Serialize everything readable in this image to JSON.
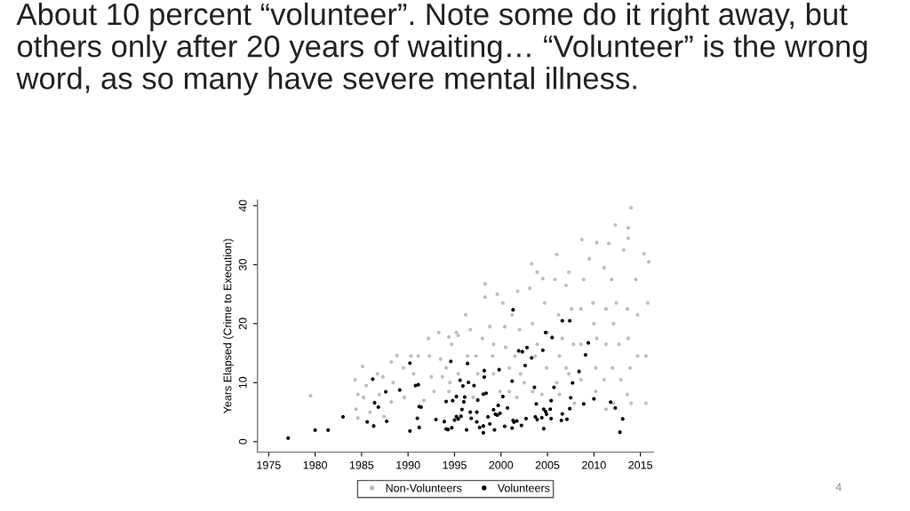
{
  "chart_data": {
    "type": "scatter",
    "title": "About 10 percent “volunteer”. Note some do it right away, but others only after 20 years of waiting… “Volunteer” is the wrong word, as so many have severe mental illness.",
    "ylabel": "Years Elapsed (Crime to Execution)",
    "xlim": [
      1973.8,
      2016.4
    ],
    "ylim": [
      -1.8,
      41
    ],
    "xticks": [
      1975,
      1980,
      1985,
      1990,
      1995,
      2000,
      2005,
      2010,
      2015
    ],
    "yticks": [
      0,
      10,
      20,
      30,
      40
    ],
    "grid": false,
    "legend": "bottom",
    "marker": "circle",
    "annotations": [
      "4"
    ],
    "series": [
      {
        "name": "Non-Volunteers",
        "color": "#bdbdbd",
        "x": [
          1979.5,
          1984.3,
          1984.6,
          1984.4,
          1984.6,
          1985.1,
          1985.2,
          1985.5,
          1985.9,
          1986.7,
          1986.9,
          1987.4,
          1987.3,
          1988.2,
          1988.4,
          1988.2,
          1988.8,
          1989.5,
          1989.6,
          1990.3,
          1990.6,
          1991.1,
          1991.7,
          1992.2,
          1992.3,
          1992.5,
          1992.8,
          1993.3,
          1993.5,
          1993.7,
          1994.4,
          1994.5,
          1995.2,
          1995.4,
          1994.7,
          1994.1,
          1994.4,
          1996.2,
          1996.7,
          1997.3,
          1997.5,
          1997.0,
          1998.3,
          1998.3,
          1998.8,
          1999.1,
          1999.2,
          1999.6,
          2000.2,
          2000.4,
          2000.5,
          2000.9,
          1999.9,
          2001.2,
          2001.8,
          2002.0,
          2002.1,
          2001.7,
          2003.1,
          2003.3,
          2003.9,
          2003.4,
          2003.7,
          2003.4,
          2004.5,
          2004.7,
          2005.0,
          2004.9,
          2006.0,
          2005.8,
          2006.2,
          2006.3,
          2006.0,
          2007.0,
          2007.3,
          2007.6,
          2007.8,
          2007.3,
          2008.7,
          2008.9,
          2008.6,
          2008.6,
          2008.6,
          2009.5,
          2009.9,
          2010.0,
          2010.3,
          2010.3,
          2010.2,
          2010.2,
          2011.1,
          2011.3,
          2011.3,
          2011.1,
          2011.6,
          2011.9,
          2012.1,
          2012.0,
          2011.3,
          2012.3,
          2012.4,
          2012.7,
          2012.9,
          2013.2,
          2013.7,
          2013.7,
          2014.0,
          2013.6,
          2013.7,
          2013.9,
          2013.6,
          2014.5,
          2014.7,
          2014.7,
          2015.4,
          2015.9,
          2015.8,
          2015.6,
          2015.6,
          2014.0,
          2012.1,
          2007.9,
          2006.3,
          2004.4,
          2002.5,
          2000.9,
          2001.5,
          2003.9,
          2007.0,
          2006.6,
          1998.0,
          1999.2,
          1996.4,
          1995.4
        ],
        "values": [
          7.8,
          10.5,
          8.0,
          5.5,
          4.0,
          12.75,
          7.5,
          9.5,
          5.0,
          11.5,
          8.0,
          4.25,
          11.0,
          13.5,
          10.0,
          6.75,
          14.6,
          12.5,
          7.5,
          14.5,
          11.5,
          14.5,
          7.0,
          17.5,
          14.5,
          11.0,
          8.5,
          18.5,
          14.0,
          11.0,
          17.75,
          10.0,
          18.5,
          18.0,
          16.5,
          12.5,
          8.5,
          21.5,
          19.0,
          14.5,
          11.5,
          7.5,
          26.75,
          24.5,
          19.5,
          14.5,
          11.5,
          25.0,
          23.5,
          19.5,
          16.0,
          12.5,
          8.5,
          21.5,
          25.5,
          19.0,
          11.5,
          7.5,
          26.0,
          30.15,
          28.75,
          20.0,
          14.5,
          8.5,
          27.65,
          23.5,
          18.5,
          12.5,
          31.75,
          27.5,
          21.5,
          14.5,
          10.0,
          26.5,
          28.75,
          22.5,
          16.5,
          11.5,
          34.25,
          27.5,
          22.5,
          16.5,
          10.5,
          31.0,
          23.5,
          20.0,
          33.75,
          17.5,
          12.5,
          8.5,
          29.5,
          22.5,
          16.5,
          10.5,
          33.6,
          27.5,
          20.0,
          12.5,
          5.5,
          36.75,
          23.5,
          16.5,
          10.5,
          32.5,
          36.25,
          34.5,
          39.65,
          22.5,
          17.5,
          12.5,
          8.0,
          27.5,
          21.5,
          14.5,
          31.85,
          30.5,
          23.5,
          14.5,
          6.5,
          6.5,
          6.5,
          6.5,
          8.0,
          8.0,
          10.0,
          8.5,
          14.5,
          16.5,
          12.5,
          17.5,
          17.5,
          16.5,
          14.5,
          11.5
        ]
      },
      {
        "name": "Volunteers",
        "color": "#000000",
        "x": [
          1977.1,
          1980.0,
          1981.4,
          1983.0,
          1986.2,
          1986.4,
          1986.8,
          1985.6,
          1986.3,
          1987.6,
          1987.7,
          1989.1,
          1990.2,
          1990.2,
          1990.8,
          1991.1,
          1991.0,
          1991.2,
          1991.2,
          1991.4,
          1993.0,
          1994.1,
          1993.9,
          1994.1,
          1994.3,
          1994.6,
          1994.8,
          1995.0,
          1995.2,
          1995.4,
          1994.7,
          1995.2,
          1995.7,
          1995.8,
          1995.6,
          1995.9,
          1996.0,
          1996.1,
          1996.3,
          1996.4,
          1996.5,
          1996.7,
          1996.8,
          1997.1,
          1997.4,
          1997.4,
          1997.5,
          1997.7,
          1998.1,
          1998.1,
          1998.2,
          1998.2,
          1998.1,
          1998.4,
          1998.6,
          1998.8,
          1999.2,
          1999.3,
          1999.4,
          1999.6,
          1999.7,
          1999.8,
          1999.9,
          2000.2,
          2000.4,
          2000.7,
          2001.2,
          2001.2,
          2001.3,
          2001.3,
          2001.4,
          2001.7,
          2001.9,
          2002.2,
          2002.3,
          2002.7,
          2002.8,
          2002.6,
          2003.3,
          2003.6,
          2003.7,
          2003.8,
          2003.9,
          2004.4,
          2004.5,
          2004.6,
          2004.6,
          2004.8,
          2004.9,
          2004.8,
          2005.3,
          2005.4,
          2005.4,
          2005.5,
          2005.7,
          2006.5,
          2006.6,
          2006.6,
          2007.1,
          2007.4,
          2007.4,
          2007.5,
          2007.7,
          2008.4,
          2008.9,
          2009.1,
          2009.4,
          2010.0,
          2011.8,
          2012.3,
          2012.8,
          2013.1
        ],
        "values": [
          0.6,
          1.95,
          1.95,
          4.2,
          10.6,
          6.6,
          5.85,
          3.35,
          2.65,
          8.45,
          3.45,
          8.75,
          13.3,
          1.8,
          9.5,
          9.65,
          3.95,
          2.4,
          5.95,
          5.85,
          3.75,
          6.8,
          3.4,
          2.15,
          2.05,
          13.6,
          6.95,
          3.65,
          7.65,
          3.85,
          2.35,
          4.25,
          4.3,
          5.45,
          10.4,
          9.45,
          6.75,
          7.55,
          2.0,
          13.25,
          10.05,
          5.0,
          3.95,
          9.5,
          5.0,
          3.35,
          7.05,
          2.4,
          2.65,
          1.5,
          12.05,
          10.95,
          8.05,
          8.2,
          4.2,
          3.0,
          5.4,
          2.0,
          4.65,
          4.5,
          6.15,
          12.2,
          4.8,
          7.65,
          2.6,
          5.7,
          10.25,
          2.3,
          22.35,
          3.6,
          3.3,
          3.5,
          15.4,
          2.75,
          15.25,
          3.9,
          15.95,
          12.9,
          14.2,
          9.2,
          4.2,
          6.4,
          3.75,
          4.05,
          15.5,
          2.2,
          5.5,
          5.1,
          4.65,
          18.5,
          5.5,
          6.95,
          3.9,
          17.65,
          9.2,
          3.6,
          20.5,
          4.7,
          3.8,
          20.5,
          5.6,
          7.45,
          9.95,
          11.9,
          6.4,
          14.7,
          16.75,
          7.25,
          6.7,
          5.7,
          1.6,
          3.85
        ]
      }
    ]
  }
}
